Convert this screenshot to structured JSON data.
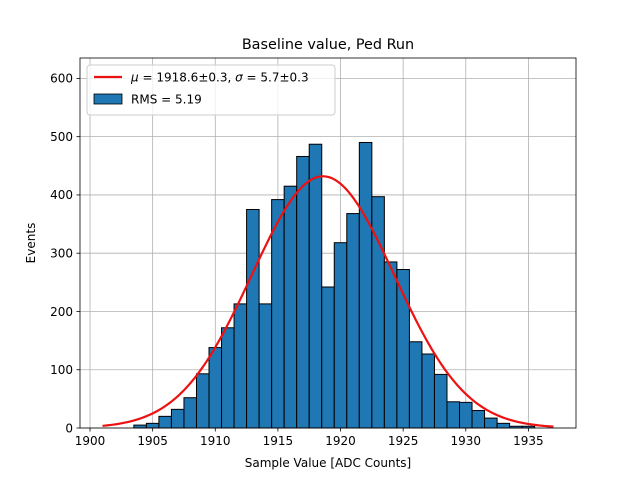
{
  "chart_data": {
    "type": "bar",
    "title": "Baseline value, Ped Run",
    "xlabel": "Sample Value [ADC Counts]",
    "ylabel": "Events",
    "xlim": [
      1899.2,
      1938.8
    ],
    "ylim": [
      0,
      635
    ],
    "xticks": [
      1900,
      1905,
      1910,
      1915,
      1920,
      1925,
      1930,
      1935
    ],
    "yticks": [
      0,
      100,
      200,
      300,
      400,
      500,
      600
    ],
    "grid": true,
    "legend_position": "top-left",
    "series": [
      {
        "name": "RMS = 5.19",
        "kind": "histogram",
        "bin_width": 1,
        "bins": [
          {
            "left": 1903.5,
            "count": 5
          },
          {
            "left": 1904.5,
            "count": 8
          },
          {
            "left": 1905.5,
            "count": 20
          },
          {
            "left": 1906.5,
            "count": 32
          },
          {
            "left": 1907.5,
            "count": 52
          },
          {
            "left": 1908.5,
            "count": 93
          },
          {
            "left": 1909.5,
            "count": 138
          },
          {
            "left": 1910.5,
            "count": 172
          },
          {
            "left": 1911.5,
            "count": 213
          },
          {
            "left": 1912.5,
            "count": 375
          },
          {
            "left": 1913.5,
            "count": 213
          },
          {
            "left": 1914.5,
            "count": 392
          },
          {
            "left": 1915.5,
            "count": 415
          },
          {
            "left": 1916.5,
            "count": 466
          },
          {
            "left": 1917.5,
            "count": 487
          },
          {
            "left": 1918.5,
            "count": 242
          },
          {
            "left": 1919.5,
            "count": 318
          },
          {
            "left": 1920.5,
            "count": 368
          },
          {
            "left": 1921.5,
            "count": 490
          },
          {
            "left": 1922.5,
            "count": 397
          },
          {
            "left": 1923.5,
            "count": 285
          },
          {
            "left": 1924.5,
            "count": 272
          },
          {
            "left": 1925.5,
            "count": 148
          },
          {
            "left": 1926.5,
            "count": 127
          },
          {
            "left": 1927.5,
            "count": 92
          },
          {
            "left": 1928.5,
            "count": 45
          },
          {
            "left": 1929.5,
            "count": 44
          },
          {
            "left": 1930.5,
            "count": 30
          },
          {
            "left": 1931.5,
            "count": 17
          },
          {
            "left": 1932.5,
            "count": 8
          },
          {
            "left": 1933.5,
            "count": 3
          },
          {
            "left": 1934.5,
            "count": 3
          }
        ]
      },
      {
        "name": "μ = 1918.6±0.3, σ = 5.7±0.3",
        "kind": "gaussian_fit",
        "mu": 1918.6,
        "sigma": 5.7,
        "amplitude": 432,
        "x_range": [
          1901,
          1937
        ]
      }
    ],
    "legend": {
      "fit_label_parts": {
        "mu_symbol": "μ",
        "mu_text": " = 1918.6±0.3, ",
        "sigma_symbol": "σ",
        "sigma_text": " = 5.7±0.3"
      },
      "hist_label": "RMS = 5.19"
    }
  },
  "colors": {
    "bar_fill": "#1f77b4",
    "bar_edge": "#000000",
    "fit_line": "#ee1111",
    "grid": "#b0b0b0",
    "axes": "#000000",
    "legend_border": "#cccccc"
  }
}
